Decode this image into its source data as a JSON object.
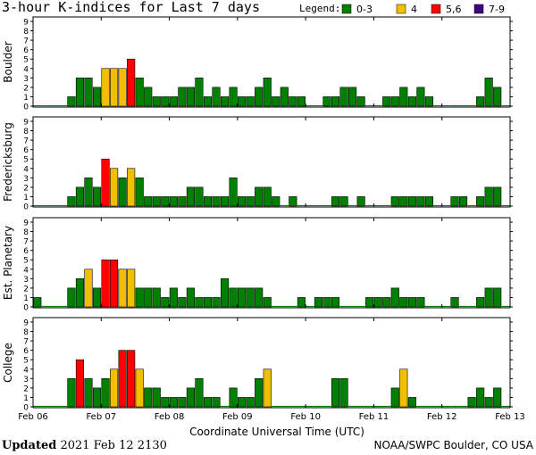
{
  "title": "3-hour K-indices for Last 7 days",
  "legend": {
    "label": "Legend:",
    "items": [
      {
        "text": "0-3",
        "color": "#008000"
      },
      {
        "text": "4",
        "color": "#f0c000"
      },
      {
        "text": "5,6",
        "color": "#ff0000"
      },
      {
        "text": "7-9",
        "color": "#400080"
      }
    ]
  },
  "footer": {
    "updated_label": "Updated",
    "updated_value": "2021 Feb 12 2130",
    "credit": "NOAA/SWPC Boulder, CO USA"
  },
  "chart_data": {
    "type": "bar",
    "xlabel": "Coordinate Universal Time (UTC)",
    "x_ticks": [
      "Feb 06",
      "Feb 07",
      "Feb 08",
      "Feb 09",
      "Feb 10",
      "Feb 11",
      "Feb 12",
      "Feb 13"
    ],
    "y_ticks": [
      "0",
      "1",
      "2",
      "3",
      "4",
      "5",
      "6",
      "7",
      "8",
      "9"
    ],
    "ylim": [
      0,
      9
    ],
    "bins_per_day": 8,
    "color_rule": "0-3 green, 4 yellow, 5-6 red, 7-9 purple",
    "series": [
      {
        "name": "Boulder",
        "values": [
          0,
          0,
          0,
          0,
          1,
          3,
          3,
          2,
          4,
          4,
          4,
          5,
          3,
          2,
          1,
          1,
          1,
          2,
          2,
          3,
          1,
          2,
          1,
          2,
          1,
          1,
          2,
          3,
          1,
          2,
          1,
          1,
          0,
          0,
          1,
          1,
          2,
          2,
          1,
          0,
          0,
          1,
          1,
          2,
          1,
          2,
          1,
          0,
          0,
          0,
          0,
          0,
          1,
          3,
          2,
          0
        ]
      },
      {
        "name": "Fredericksburg",
        "values": [
          0,
          0,
          0,
          0,
          1,
          2,
          3,
          2,
          5,
          4,
          3,
          4,
          3,
          1,
          1,
          1,
          1,
          1,
          2,
          2,
          1,
          1,
          1,
          3,
          1,
          1,
          2,
          2,
          1,
          0,
          1,
          0,
          0,
          0,
          0,
          1,
          1,
          0,
          1,
          0,
          0,
          0,
          1,
          1,
          1,
          1,
          1,
          0,
          0,
          1,
          1,
          0,
          1,
          2,
          2,
          0
        ]
      },
      {
        "name": "Est. Planetary",
        "values": [
          1,
          0,
          0,
          0,
          2,
          3,
          4,
          2,
          5,
          5,
          4,
          4,
          2,
          2,
          2,
          1,
          2,
          1,
          2,
          1,
          1,
          1,
          3,
          2,
          2,
          2,
          2,
          1,
          0,
          0,
          0,
          1,
          0,
          1,
          1,
          1,
          0,
          0,
          0,
          1,
          1,
          1,
          2,
          1,
          1,
          1,
          0,
          0,
          0,
          1,
          0,
          0,
          1,
          2,
          2,
          0
        ]
      },
      {
        "name": "College",
        "values": [
          0,
          0,
          0,
          0,
          3,
          5,
          3,
          2,
          3,
          4,
          6,
          6,
          4,
          2,
          2,
          1,
          1,
          1,
          2,
          3,
          1,
          1,
          0,
          2,
          1,
          1,
          3,
          4,
          0,
          0,
          0,
          0,
          0,
          0,
          0,
          3,
          3,
          0,
          0,
          0,
          0,
          0,
          2,
          4,
          1,
          0,
          0,
          0,
          0,
          0,
          0,
          1,
          2,
          1,
          2,
          0
        ]
      }
    ]
  }
}
